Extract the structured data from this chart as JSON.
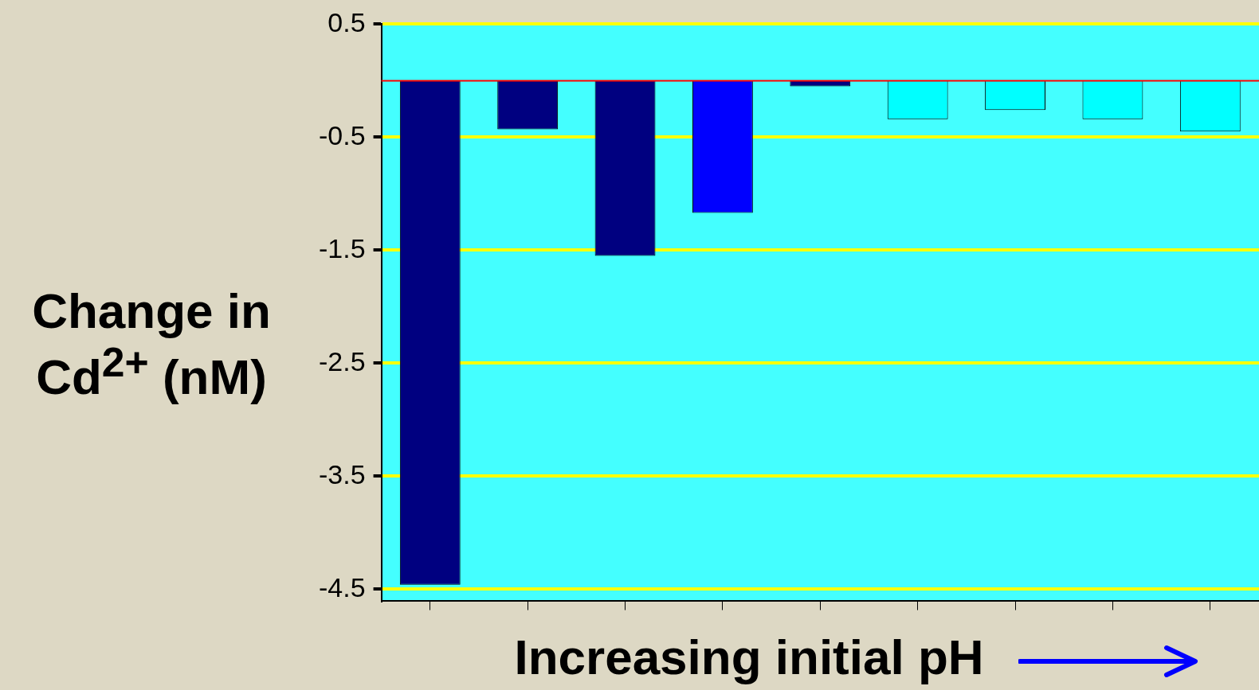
{
  "chart_data": {
    "type": "bar",
    "ylabel": "Change in Cd$^{2+}$ (nM)",
    "xlabel": "Increasing initial pH",
    "categories": [
      null,
      null,
      null,
      null,
      null,
      null,
      null,
      null,
      null
    ],
    "values": [
      -4.46,
      -0.43,
      -1.55,
      -1.17,
      -0.05,
      -0.34,
      -0.26,
      -0.34,
      -0.45
    ],
    "colors": [
      "#000080",
      "#000080",
      "#000080",
      "#0000ff",
      "#000080",
      "#00ffff",
      "#00ffff",
      "#00ffff",
      "#00ffff"
    ],
    "ylim": [
      -4.6,
      0.5
    ],
    "yticks": [
      0.5,
      -0.5,
      -1.5,
      -2.5,
      -3.5,
      -4.5
    ],
    "grid": "y",
    "tick_labels": "y",
    "ref_lines": [
      {
        "axis": "y",
        "value": 0,
        "color": "#ff0000"
      }
    ]
  }
}
